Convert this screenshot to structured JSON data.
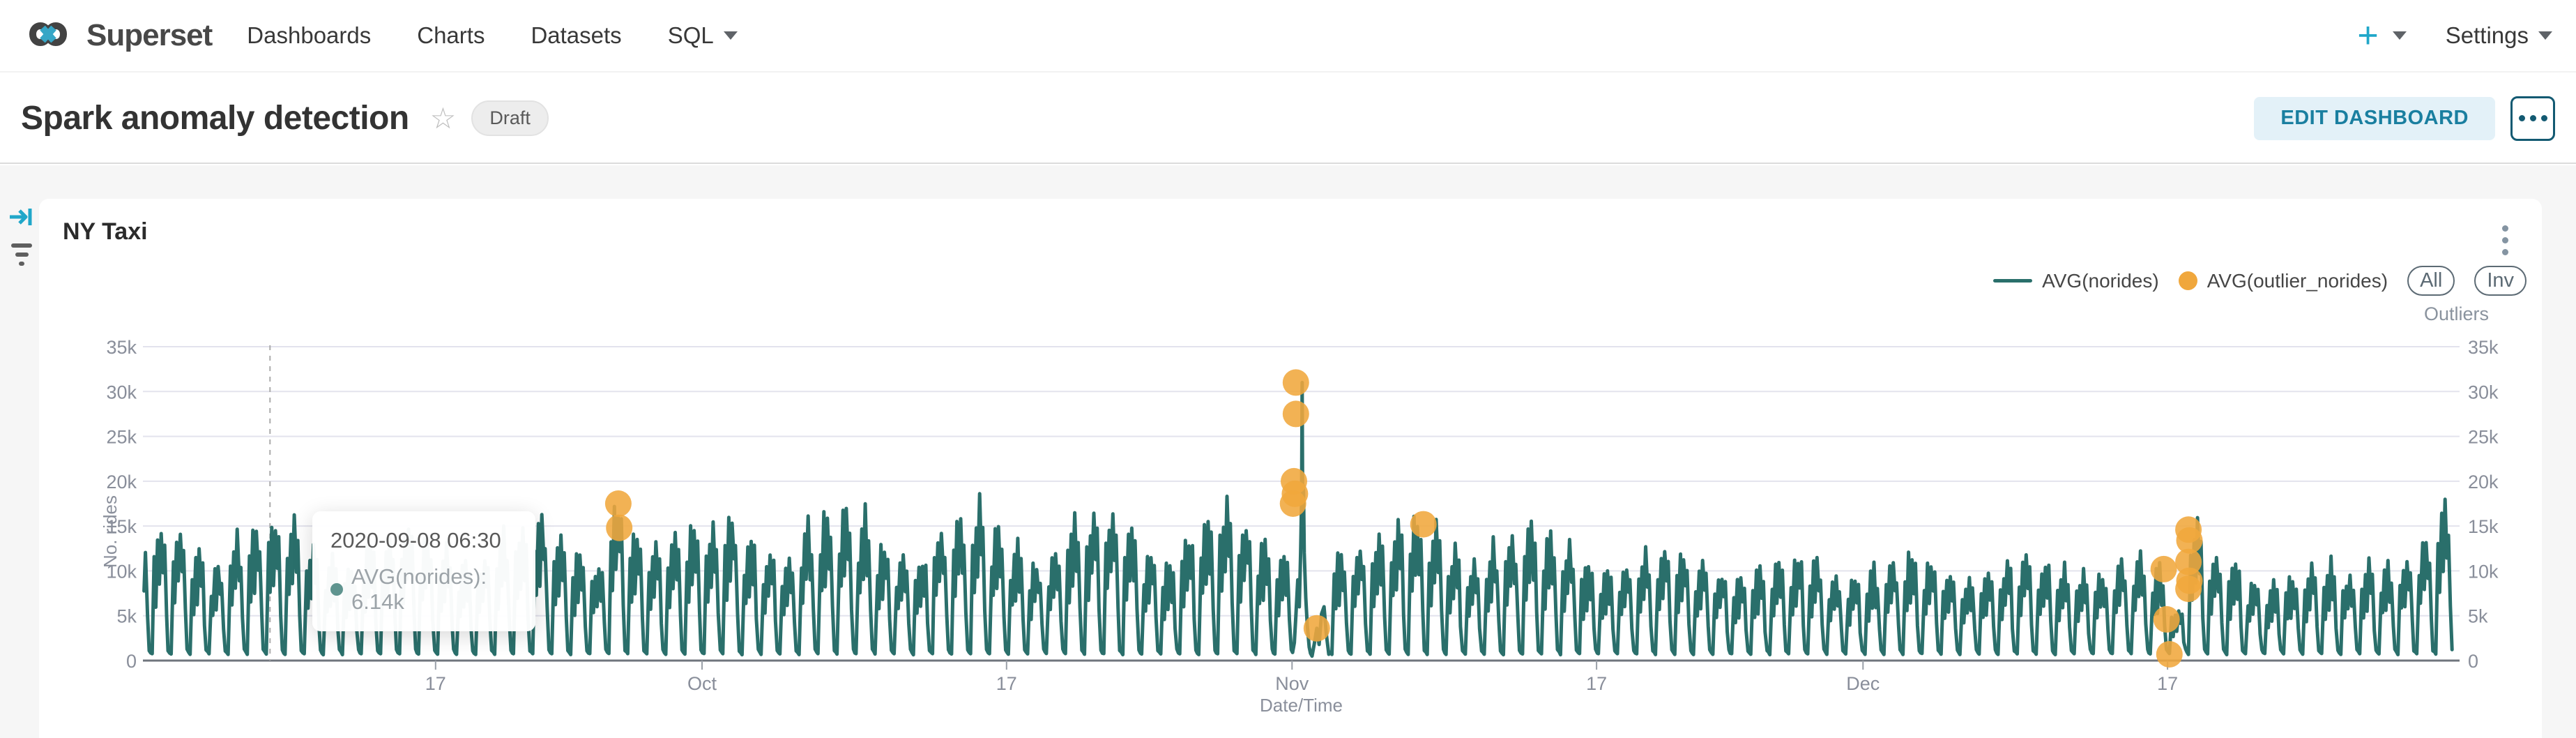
{
  "nav": {
    "brand": "Superset",
    "items": [
      {
        "label": "Dashboards"
      },
      {
        "label": "Charts"
      },
      {
        "label": "Datasets"
      },
      {
        "label": "SQL"
      }
    ],
    "plus_label": "+",
    "settings_label": "Settings"
  },
  "header": {
    "title": "Spark anomaly detection",
    "badge": "Draft",
    "edit_button": "EDIT DASHBOARD"
  },
  "chart": {
    "title": "NY Taxi",
    "legend": {
      "line_label": "AVG(norides)",
      "dot_label": "AVG(outlier_norides)",
      "all": "All",
      "inv": "Inv"
    },
    "outliers_label": "Outliers"
  },
  "tooltip": {
    "title": "2020-09-08 06:30",
    "series": "AVG(norides)",
    "value": "6.14k",
    "row_text": "AVG(norides): 6.14k"
  },
  "icons": {
    "logo": "infinity-mark",
    "star": "☆",
    "kebab": "vertical-ellipsis",
    "more": "horizontal-ellipsis",
    "caret": "▾",
    "rail_expand": "arrow-to-bar",
    "rail_filter": "filter-list"
  },
  "chart_data": {
    "type": "line",
    "title": "NY Taxi",
    "xlabel": "Date/Time",
    "ylabel": "No. rides",
    "x_range": [
      "2020-09-01",
      "2020-12-31"
    ],
    "ylim": [
      0,
      35000
    ],
    "y_ticks": [
      "0",
      "5k",
      "10k",
      "15k",
      "20k",
      "25k",
      "30k",
      "35k"
    ],
    "y_tick_values": [
      0,
      5000,
      10000,
      15000,
      20000,
      25000,
      30000,
      35000
    ],
    "dual_y_axis": true,
    "grid": true,
    "legend_position": "top-right",
    "x_ticks": [
      {
        "label": "17",
        "day": 16
      },
      {
        "label": "Oct",
        "day": 30
      },
      {
        "label": "17",
        "day": 46
      },
      {
        "label": "Nov",
        "day": 61
      },
      {
        "label": "17",
        "day": 77
      },
      {
        "label": "Dec",
        "day": 91
      },
      {
        "label": "17",
        "day": 107
      }
    ],
    "crosshair": {
      "date": "2020-09-08 06:30",
      "day": 7.3
    },
    "series": [
      {
        "name": "AVG(norides)",
        "type": "line",
        "color": "#2a6f6b",
        "pattern": "half-hourly ride counts oscillating daily between ~0.9k at night and the listed daily peak",
        "night_low_rides": 900,
        "daily_peak_rides_k": [
          13,
          14.5,
          15,
          12,
          10.5,
          13.5,
          15,
          16,
          15,
          12.5,
          11,
          10.5,
          13,
          14.5,
          15,
          14,
          12,
          10.5,
          11.5,
          14,
          15,
          16,
          14,
          12,
          11,
          17.5,
          14.5,
          13,
          14,
          15,
          15.5,
          16,
          14,
          12,
          11,
          15,
          16.5,
          17,
          16,
          13,
          12,
          11.5,
          15,
          16,
          17,
          15,
          13,
          11,
          12,
          15.5,
          16.5,
          17,
          15,
          12.5,
          11,
          14,
          16,
          17.5,
          16,
          13,
          12,
          31,
          6,
          12,
          13,
          14,
          15.5,
          16,
          15,
          12,
          11,
          13,
          14,
          15,
          14,
          13,
          11,
          10,
          11,
          12,
          13,
          12,
          11,
          10,
          9.5,
          10,
          11,
          12,
          11,
          10,
          9.5,
          10,
          11,
          12,
          11,
          10,
          9.5,
          10,
          11,
          12,
          11.5,
          10,
          9.5,
          10,
          11,
          12,
          10.5,
          6,
          14.5,
          12,
          11,
          9,
          8.5,
          9.5,
          10.5,
          11,
          10,
          10.5,
          11,
          12,
          14,
          18.2
        ]
      },
      {
        "name": "AVG(outlier_norides)",
        "type": "scatter",
        "color": "#f0a73c",
        "points": [
          {
            "date": "2020-09-26",
            "day": 25.6,
            "value": 17500
          },
          {
            "date": "2020-09-26",
            "day": 25.65,
            "value": 14800
          },
          {
            "date": "2020-11-01",
            "day": 61.2,
            "value": 31000
          },
          {
            "date": "2020-11-01",
            "day": 61.2,
            "value": 27500
          },
          {
            "date": "2020-11-01",
            "day": 61.1,
            "value": 20000
          },
          {
            "date": "2020-11-01",
            "day": 61.15,
            "value": 18600
          },
          {
            "date": "2020-11-01",
            "day": 61.05,
            "value": 17500
          },
          {
            "date": "2020-11-02",
            "day": 62.3,
            "value": 3600
          },
          {
            "date": "2020-11-08",
            "day": 67.9,
            "value": 15200
          },
          {
            "date": "2020-12-16",
            "day": 106.8,
            "value": 10200
          },
          {
            "date": "2020-12-17",
            "day": 106.95,
            "value": 4600
          },
          {
            "date": "2020-12-17",
            "day": 107.1,
            "value": 700
          },
          {
            "date": "2020-12-18",
            "day": 108.1,
            "value": 14600
          },
          {
            "date": "2020-12-18",
            "day": 108.15,
            "value": 13400
          },
          {
            "date": "2020-12-18",
            "day": 108.1,
            "value": 11000
          },
          {
            "date": "2020-12-18",
            "day": 108.15,
            "value": 8900
          },
          {
            "date": "2020-12-18",
            "day": 108.1,
            "value": 8000
          }
        ]
      }
    ]
  }
}
